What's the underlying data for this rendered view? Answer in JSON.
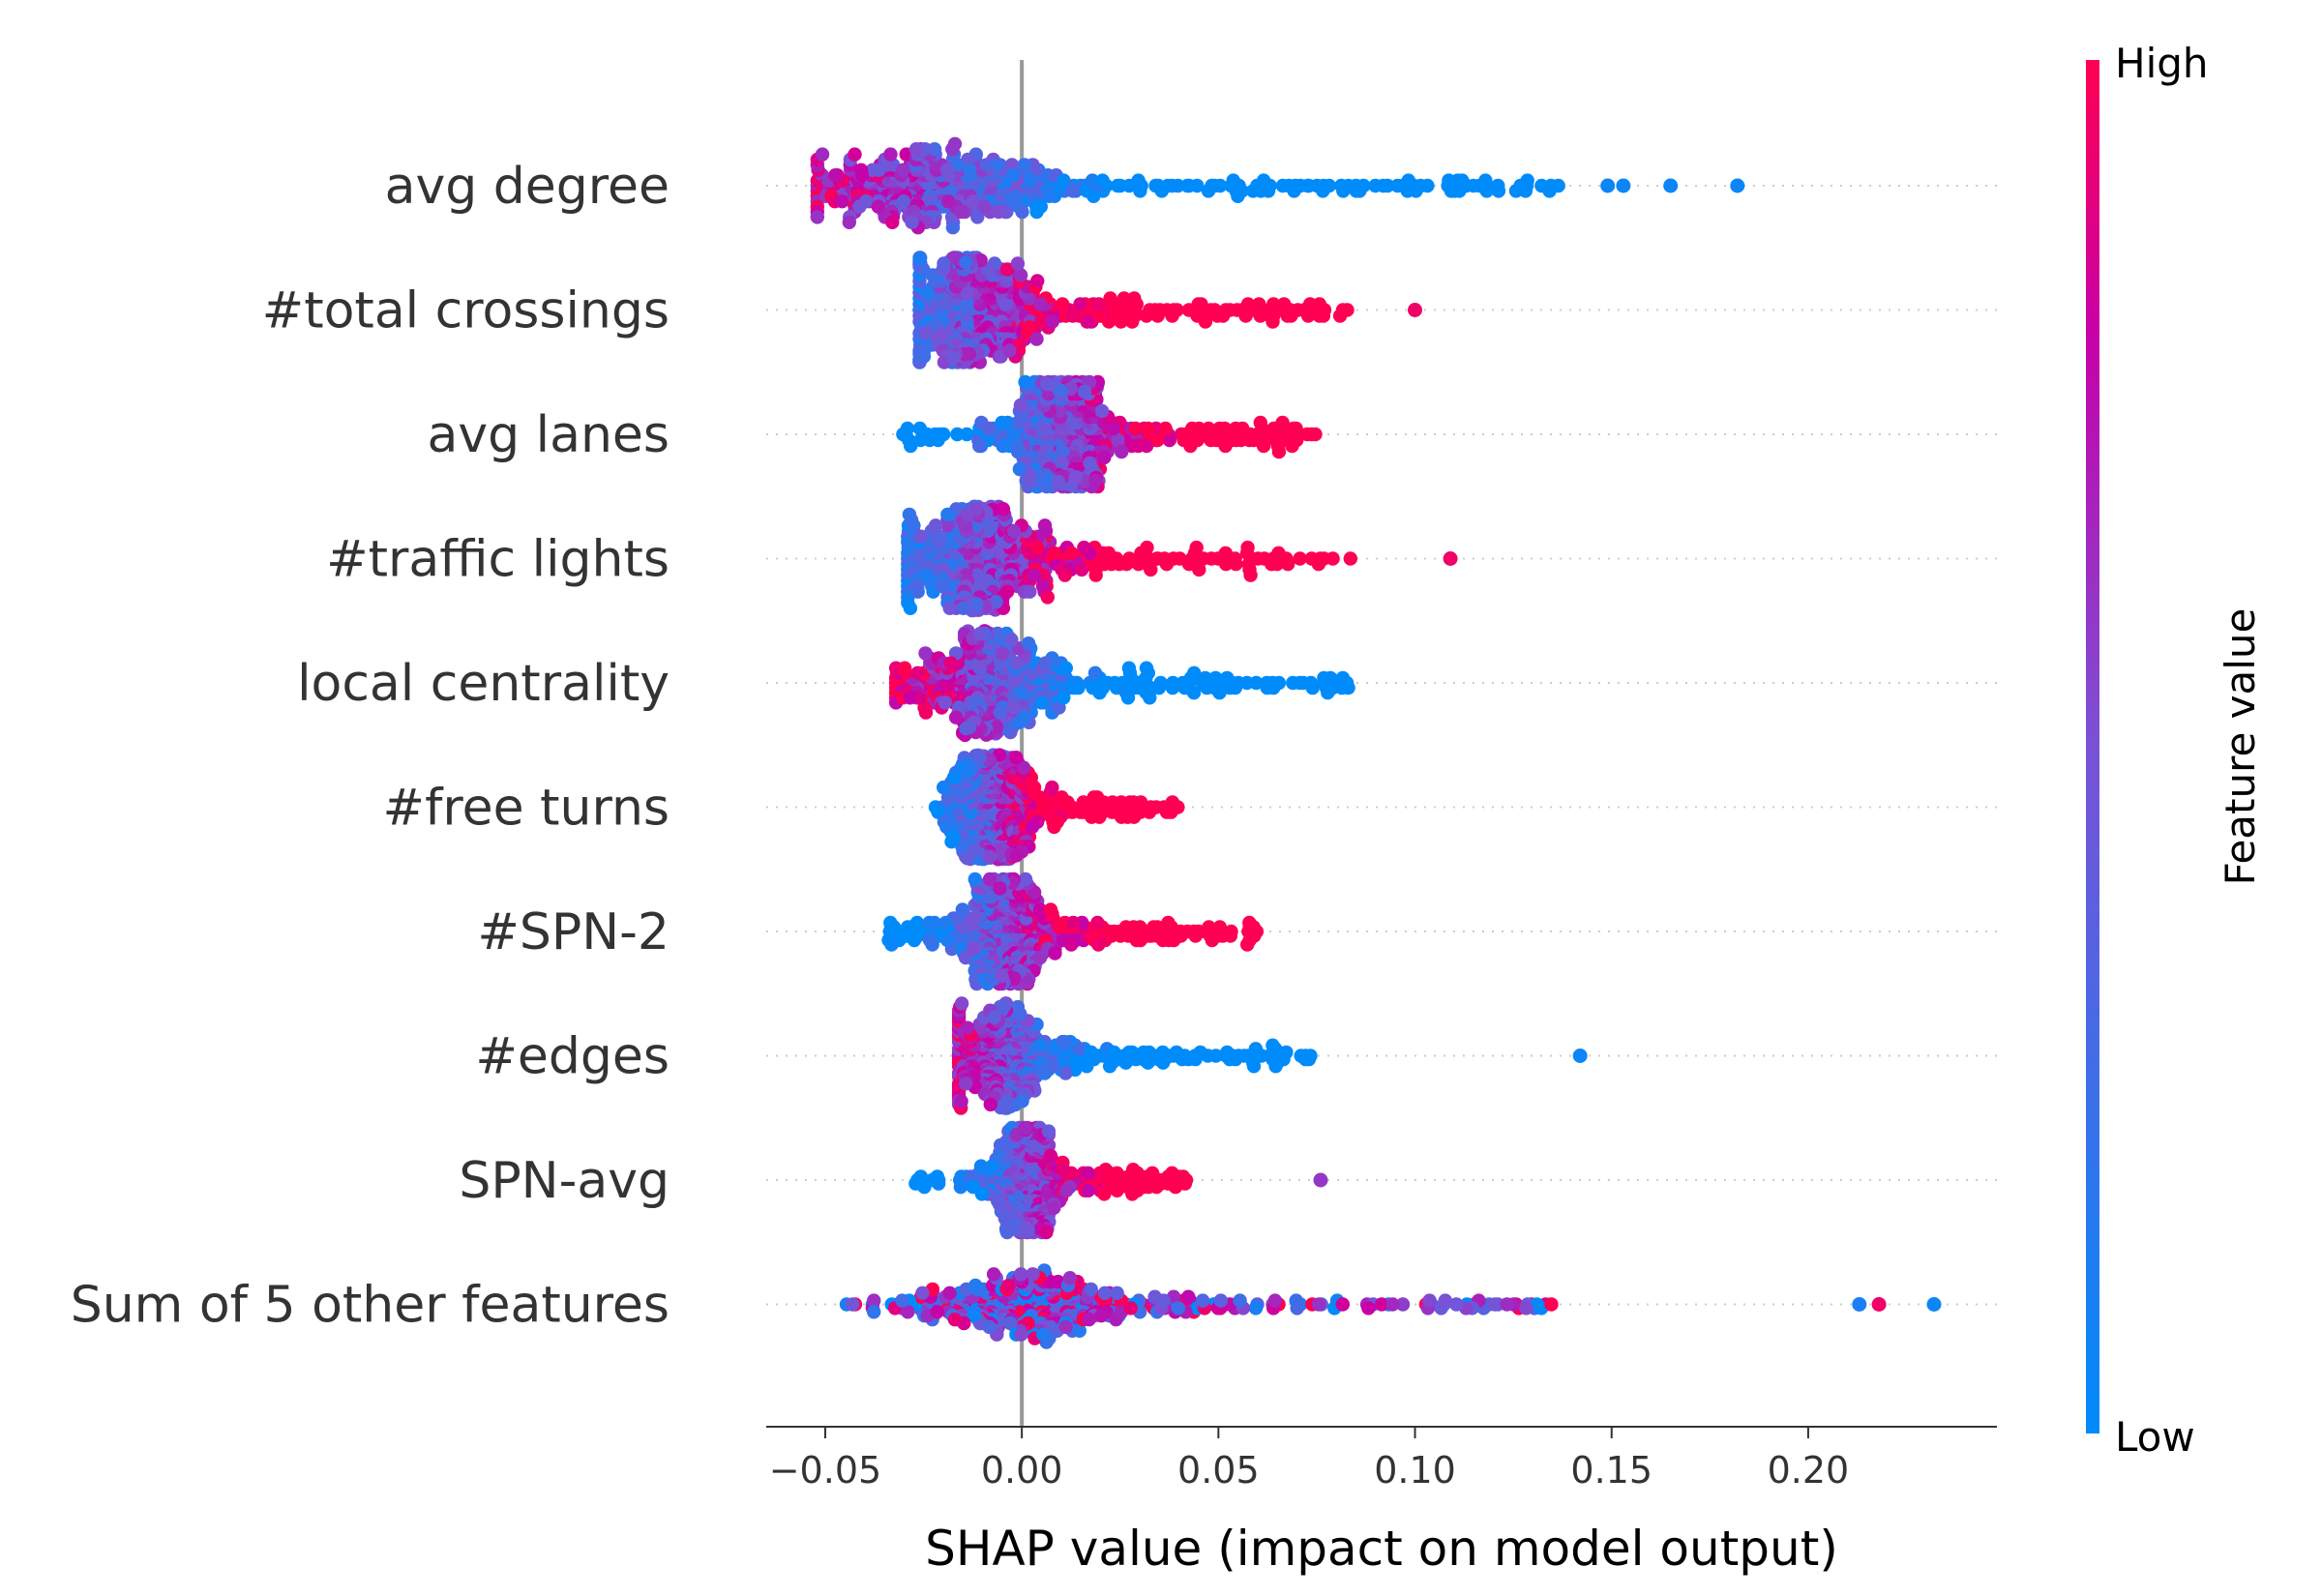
{
  "chart_data": {
    "type": "scatter",
    "subtype": "shap-beeswarm",
    "xlabel": "SHAP value (impact on model output)",
    "xlim": [
      -0.065,
      0.248
    ],
    "xticks": [
      -0.05,
      0.0,
      0.05,
      0.1,
      0.15,
      0.2
    ],
    "xtick_labels": [
      "−0.05",
      "0.00",
      "0.05",
      "0.10",
      "0.15",
      "0.20"
    ],
    "colorbar": {
      "title": "Feature value",
      "high_label": "High",
      "low_label": "Low",
      "low_color": "#008bfb",
      "high_color": "#ff0052"
    },
    "features": [
      {
        "name": "avg degree",
        "range": [
          -0.052,
          0.137
        ],
        "core": [
          -0.045,
          0.03
        ],
        "peak": -0.022,
        "spread": 0.9,
        "trend": "high_left",
        "outliers": [
          {
            "x": 0.149,
            "v": 0.05
          },
          {
            "x": 0.153,
            "v": 0.05
          },
          {
            "x": 0.165,
            "v": 0.05
          },
          {
            "x": 0.182,
            "v": 0.05
          }
        ]
      },
      {
        "name": "#total crossings",
        "range": [
          -0.026,
          0.085
        ],
        "core": [
          -0.022,
          0.04
        ],
        "peak": -0.013,
        "spread": 1.0,
        "trend": "high_right",
        "outliers": [
          {
            "x": 0.1,
            "v": 0.95
          }
        ]
      },
      {
        "name": "avg lanes",
        "range": [
          -0.032,
          0.075
        ],
        "core": [
          -0.028,
          0.025
        ],
        "peak": 0.01,
        "spread": 1.0,
        "trend": "high_right",
        "outliers": []
      },
      {
        "name": "#traffic lights",
        "range": [
          -0.029,
          0.084
        ],
        "core": [
          -0.025,
          0.055
        ],
        "peak": -0.011,
        "spread": 0.95,
        "trend": "high_right",
        "outliers": [
          {
            "x": 0.109,
            "v": 0.95
          }
        ]
      },
      {
        "name": "local centrality",
        "range": [
          -0.032,
          0.084
        ],
        "core": [
          -0.03,
          0.035
        ],
        "peak": -0.009,
        "spread": 0.85,
        "trend": "high_left",
        "outliers": []
      },
      {
        "name": "#free turns",
        "range": [
          -0.022,
          0.04
        ],
        "core": [
          -0.02,
          0.03
        ],
        "peak": -0.008,
        "spread": 0.85,
        "trend": "high_right",
        "outliers": []
      },
      {
        "name": "#SPN-2",
        "range": [
          -0.034,
          0.06
        ],
        "core": [
          -0.025,
          0.045
        ],
        "peak": -0.005,
        "spread": 0.75,
        "trend": "high_right",
        "outliers": []
      },
      {
        "name": "#edges",
        "range": [
          -0.016,
          0.075
        ],
        "core": [
          -0.012,
          0.045
        ],
        "peak": -0.004,
        "spread": 0.6,
        "trend": "high_left",
        "outliers": [
          {
            "x": 0.142,
            "v": 0.05
          }
        ]
      },
      {
        "name": "SPN-avg",
        "range": [
          -0.028,
          0.044
        ],
        "core": [
          -0.022,
          0.028
        ],
        "peak": 0.001,
        "spread": 0.6,
        "trend": "high_right",
        "outliers": [
          {
            "x": 0.076,
            "v": 0.6
          }
        ]
      },
      {
        "name": "Sum of 5 other features",
        "range": [
          -0.046,
          0.135
        ],
        "core": [
          -0.04,
          0.07
        ],
        "peak": 0.0,
        "spread": 0.65,
        "trend": "mixed",
        "outliers": [
          {
            "x": 0.213,
            "v": 0.1
          },
          {
            "x": 0.218,
            "v": 0.95
          },
          {
            "x": 0.232,
            "v": 0.05
          }
        ]
      }
    ]
  }
}
